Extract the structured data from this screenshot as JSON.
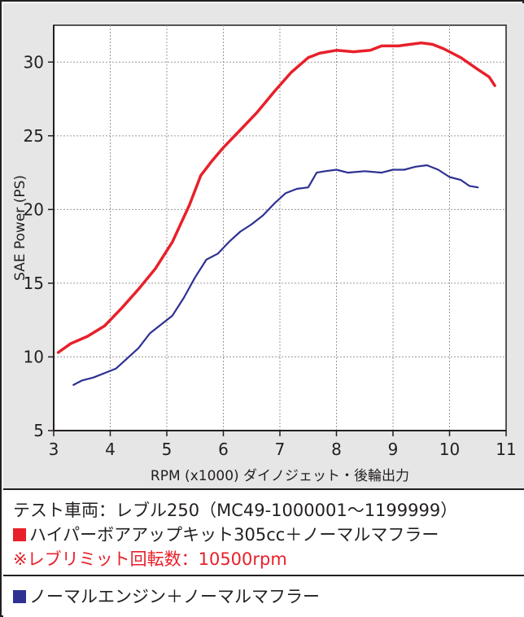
{
  "chart_data": {
    "type": "line",
    "xlabel": "RPM (x1000) ダイノジェット・後輪出力",
    "ylabel": "SAE Power (PS)",
    "xlim": [
      3,
      11
    ],
    "ylim": [
      5,
      32.5
    ],
    "xticks": [
      "3",
      "4",
      "5",
      "6",
      "7",
      "8",
      "9",
      "10",
      "11"
    ],
    "yticks": [
      "5",
      "10",
      "15",
      "20",
      "25",
      "30"
    ],
    "grid": true,
    "series": [
      {
        "name": "ハイパーボアアップキット305cc＋ノーマルマフラー",
        "color": "#e8202a",
        "x": [
          3.08,
          3.3,
          3.6,
          3.9,
          4.2,
          4.5,
          4.8,
          5.1,
          5.4,
          5.6,
          5.8,
          6.0,
          6.3,
          6.6,
          6.9,
          7.2,
          7.5,
          7.7,
          8.0,
          8.3,
          8.6,
          8.8,
          9.1,
          9.3,
          9.5,
          9.7,
          9.9,
          10.2,
          10.5,
          10.7,
          10.8
        ],
        "y": [
          10.3,
          10.9,
          11.4,
          12.1,
          13.3,
          14.6,
          16.0,
          17.8,
          20.3,
          22.3,
          23.3,
          24.2,
          25.4,
          26.6,
          28.0,
          29.3,
          30.3,
          30.6,
          30.8,
          30.7,
          30.8,
          31.1,
          31.1,
          31.2,
          31.3,
          31.2,
          30.9,
          30.3,
          29.5,
          29.0,
          28.4
        ]
      },
      {
        "name": "ノーマルエンジン＋ノーマルマフラー",
        "color": "#2e3192",
        "x": [
          3.35,
          3.5,
          3.7,
          3.9,
          4.1,
          4.3,
          4.5,
          4.7,
          4.9,
          5.1,
          5.3,
          5.5,
          5.7,
          5.9,
          6.1,
          6.3,
          6.5,
          6.7,
          6.9,
          7.1,
          7.3,
          7.5,
          7.65,
          7.8,
          8.0,
          8.2,
          8.5,
          8.8,
          9.0,
          9.2,
          9.4,
          9.6,
          9.8,
          10.0,
          10.2,
          10.35,
          10.5
        ],
        "y": [
          8.1,
          8.4,
          8.6,
          8.9,
          9.2,
          9.9,
          10.6,
          11.6,
          12.2,
          12.8,
          14.0,
          15.4,
          16.6,
          17.0,
          17.8,
          18.5,
          19.0,
          19.6,
          20.4,
          21.1,
          21.4,
          21.5,
          22.5,
          22.6,
          22.7,
          22.5,
          22.6,
          22.5,
          22.7,
          22.7,
          22.9,
          23.0,
          22.7,
          22.2,
          22.0,
          21.6,
          21.5
        ]
      }
    ]
  },
  "legend": {
    "vehicle_line": "テスト車両：レブル250（MC49-1000001〜1199999）",
    "red_series_label": "ハイパーボアアップキット305cc＋ノーマルマフラー",
    "rev_limit_note": "※レブリミット回転数：10500rpm",
    "blue_series_label": "ノーマルエンジン＋ノーマルマフラー",
    "red_color": "#e8202a",
    "blue_color": "#2e3192",
    "note_color": "#e8202a"
  }
}
